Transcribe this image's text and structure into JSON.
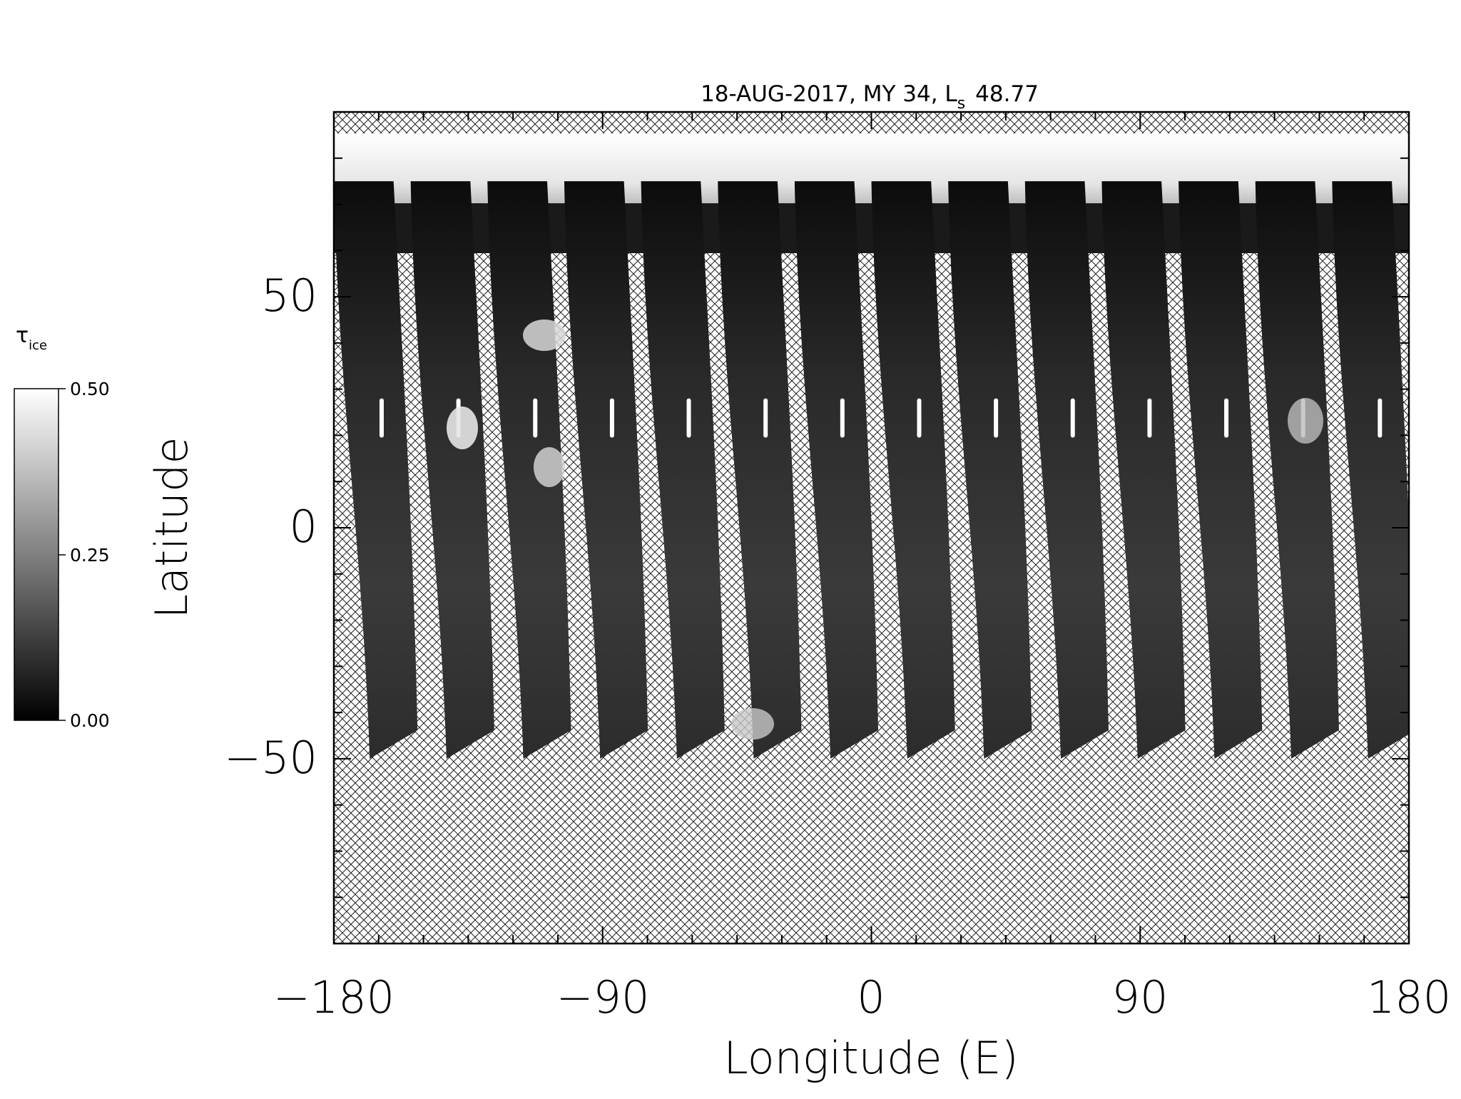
{
  "title_prefix": "18-AUG-2017, MY 34,  L",
  "title_subscript": "s",
  "title_value": "48.77",
  "xlabel": "Longitude (E)",
  "ylabel": "Latitude",
  "x_ticks": [
    "−180",
    "−90",
    "0",
    "90",
    "180"
  ],
  "y_ticks": [
    "50",
    "0",
    "−50"
  ],
  "colorbar": {
    "label_symbol": "τ",
    "label_subscript": "ice",
    "ticks": [
      "0.50",
      "0.25",
      "0.00"
    ],
    "min": 0.0,
    "max": 0.5
  },
  "map": {
    "lon_range": [
      -180,
      180
    ],
    "lat_range": [
      -90,
      90
    ],
    "swath_count": 14,
    "fill_pattern": "cross-hatch (no data)"
  },
  "colors": {
    "background": "#ffffff",
    "axes": "#000000",
    "swath_dark": "#1c1c1c",
    "ice": "#f4f4f4"
  }
}
